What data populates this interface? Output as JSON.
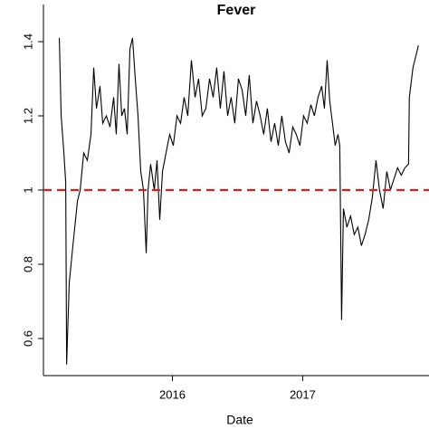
{
  "chart_data": {
    "type": "line",
    "title": "Fever",
    "x_label": "Date",
    "x": [
      2015.132,
      2015.146,
      2015.167,
      2015.181,
      2015.188,
      2015.208,
      2015.236,
      2015.271,
      2015.292,
      2015.319,
      2015.347,
      2015.375,
      2015.396,
      2015.417,
      2015.444,
      2015.465,
      2015.493,
      2015.521,
      2015.549,
      2015.569,
      2015.59,
      2015.611,
      2015.632,
      2015.653,
      2015.674,
      2015.694,
      2015.715,
      2015.736,
      2015.757,
      2015.778,
      2015.799,
      2015.813,
      2015.833,
      2015.861,
      2015.882,
      2015.903,
      2015.924,
      2015.951,
      2015.979,
      2016.007,
      2016.035,
      2016.063,
      2016.09,
      2016.118,
      2016.146,
      2016.174,
      2016.201,
      2016.229,
      2016.257,
      2016.285,
      2016.313,
      2016.34,
      2016.368,
      2016.396,
      2016.424,
      2016.451,
      2016.479,
      2016.507,
      2016.535,
      2016.563,
      2016.59,
      2016.618,
      2016.646,
      2016.674,
      2016.701,
      2016.729,
      2016.757,
      2016.785,
      2016.813,
      2016.84,
      2016.868,
      2016.896,
      2016.924,
      2016.951,
      2016.979,
      2017.007,
      2017.035,
      2017.063,
      2017.09,
      2017.118,
      2017.146,
      2017.167,
      2017.188,
      2017.208,
      2017.229,
      2017.25,
      2017.271,
      2017.285,
      2017.299,
      2017.313,
      2017.34,
      2017.368,
      2017.396,
      2017.424,
      2017.451,
      2017.479,
      2017.507,
      2017.535,
      2017.563,
      2017.59,
      2017.618,
      2017.646,
      2017.674,
      2017.701,
      2017.729,
      2017.757,
      2017.785,
      2017.813,
      2017.819,
      2017.847,
      2017.889
    ],
    "values": [
      1.41,
      1.2,
      1.1,
      1.02,
      0.53,
      0.75,
      0.85,
      0.97,
      1.0,
      1.1,
      1.08,
      1.15,
      1.33,
      1.22,
      1.28,
      1.18,
      1.2,
      1.17,
      1.25,
      1.15,
      1.34,
      1.2,
      1.22,
      1.15,
      1.38,
      1.41,
      1.3,
      1.2,
      1.05,
      1.0,
      0.83,
      1.0,
      1.07,
      1.0,
      1.08,
      0.92,
      1.05,
      1.1,
      1.15,
      1.12,
      1.2,
      1.18,
      1.25,
      1.2,
      1.35,
      1.25,
      1.3,
      1.2,
      1.22,
      1.3,
      1.25,
      1.33,
      1.22,
      1.32,
      1.2,
      1.25,
      1.18,
      1.3,
      1.27,
      1.2,
      1.31,
      1.18,
      1.24,
      1.2,
      1.15,
      1.22,
      1.13,
      1.18,
      1.12,
      1.2,
      1.13,
      1.1,
      1.17,
      1.15,
      1.12,
      1.2,
      1.18,
      1.23,
      1.2,
      1.25,
      1.28,
      1.22,
      1.35,
      1.24,
      1.18,
      1.12,
      1.15,
      1.12,
      0.65,
      0.95,
      0.9,
      0.93,
      0.88,
      0.9,
      0.85,
      0.88,
      0.92,
      0.98,
      1.08,
      1.0,
      0.95,
      1.05,
      1.0,
      1.03,
      1.06,
      1.04,
      1.06,
      1.07,
      1.25,
      1.33,
      1.39
    ],
    "color": "#000000",
    "hline": {
      "value": 1.0,
      "color": "#dd1c1c"
    },
    "xlim": [
      2015.01,
      2017.97
    ],
    "xticks": [
      2016,
      2017
    ],
    "ylim": [
      0.5,
      1.5
    ],
    "yticks": [
      0.6,
      0.8,
      1.0,
      1.2,
      1.4
    ]
  }
}
